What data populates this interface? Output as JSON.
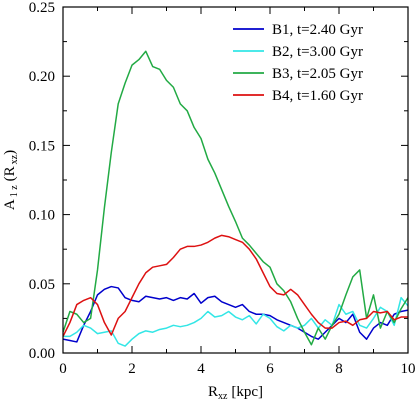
{
  "chart_data": {
    "type": "line",
    "xlabel_main": "R",
    "xlabel_sub": "xz",
    "xlabel_unit": "[kpc]",
    "ylabel_main": "A",
    "ylabel_sub": "1 z",
    "ylabel_arg_open": "(R",
    "ylabel_arg_sub": "xz",
    "ylabel_arg_close": ")",
    "xlim": [
      0,
      10
    ],
    "ylim": [
      0,
      0.25
    ],
    "xticks": [
      0,
      2,
      4,
      6,
      8,
      10
    ],
    "xtick_labels": [
      "0",
      "2",
      "4",
      "6",
      "8",
      "10"
    ],
    "yticks": [
      0,
      0.05,
      0.1,
      0.15,
      0.2,
      0.25
    ],
    "ytick_labels": [
      "0.00",
      "0.05",
      "0.10",
      "0.15",
      "0.20",
      "0.25"
    ],
    "grid": false,
    "legend_position": "top-right",
    "series": [
      {
        "name": "B1, t=2.40 Gyr",
        "color": "#0000cc",
        "x": [
          0.0,
          0.2,
          0.4,
          0.6,
          0.8,
          1.0,
          1.2,
          1.4,
          1.6,
          1.8,
          2.0,
          2.2,
          2.4,
          2.6,
          2.8,
          3.0,
          3.2,
          3.4,
          3.6,
          3.8,
          4.0,
          4.2,
          4.4,
          4.6,
          4.8,
          5.0,
          5.2,
          5.4,
          5.6,
          5.8,
          6.0,
          6.2,
          6.4,
          6.6,
          6.8,
          7.0,
          7.2,
          7.4,
          7.6,
          7.8,
          8.0,
          8.2,
          8.4,
          8.6,
          8.8,
          9.0,
          9.2,
          9.4,
          9.6,
          9.8,
          10.0
        ],
        "y": [
          0.01,
          0.009,
          0.008,
          0.02,
          0.03,
          0.042,
          0.046,
          0.048,
          0.047,
          0.04,
          0.038,
          0.037,
          0.041,
          0.04,
          0.039,
          0.04,
          0.038,
          0.04,
          0.039,
          0.043,
          0.036,
          0.04,
          0.041,
          0.037,
          0.035,
          0.033,
          0.035,
          0.03,
          0.028,
          0.028,
          0.027,
          0.024,
          0.022,
          0.02,
          0.018,
          0.015,
          0.012,
          0.01,
          0.015,
          0.02,
          0.025,
          0.022,
          0.028,
          0.015,
          0.01,
          0.018,
          0.022,
          0.02,
          0.028,
          0.03,
          0.031
        ]
      },
      {
        "name": "B2, t=3.00 Gyr",
        "color": "#33e6e6",
        "x": [
          0.0,
          0.2,
          0.4,
          0.6,
          0.8,
          1.0,
          1.2,
          1.4,
          1.6,
          1.8,
          2.0,
          2.2,
          2.4,
          2.6,
          2.8,
          3.0,
          3.2,
          3.4,
          3.6,
          3.8,
          4.0,
          4.2,
          4.4,
          4.6,
          4.8,
          5.0,
          5.2,
          5.4,
          5.6,
          5.8,
          6.0,
          6.2,
          6.4,
          6.6,
          6.8,
          7.0,
          7.2,
          7.4,
          7.6,
          7.8,
          8.0,
          8.2,
          8.4,
          8.6,
          8.8,
          9.0,
          9.2,
          9.4,
          9.6,
          9.8,
          10.0
        ],
        "y": [
          0.012,
          0.012,
          0.015,
          0.02,
          0.018,
          0.014,
          0.015,
          0.016,
          0.007,
          0.005,
          0.01,
          0.014,
          0.016,
          0.015,
          0.017,
          0.018,
          0.02,
          0.019,
          0.02,
          0.022,
          0.025,
          0.03,
          0.026,
          0.027,
          0.03,
          0.026,
          0.024,
          0.027,
          0.021,
          0.028,
          0.025,
          0.019,
          0.016,
          0.02,
          0.018,
          0.02,
          0.025,
          0.018,
          0.024,
          0.02,
          0.035,
          0.028,
          0.03,
          0.02,
          0.018,
          0.025,
          0.033,
          0.03,
          0.02,
          0.04,
          0.034
        ]
      },
      {
        "name": "B3, t=2.05 Gyr",
        "color": "#22aa44",
        "x": [
          0.0,
          0.2,
          0.4,
          0.6,
          0.8,
          1.0,
          1.2,
          1.4,
          1.6,
          1.8,
          2.0,
          2.2,
          2.4,
          2.6,
          2.8,
          3.0,
          3.2,
          3.4,
          3.6,
          3.8,
          4.0,
          4.2,
          4.4,
          4.6,
          4.8,
          5.0,
          5.2,
          5.4,
          5.6,
          5.8,
          6.0,
          6.2,
          6.4,
          6.6,
          6.8,
          7.0,
          7.2,
          7.4,
          7.6,
          7.8,
          8.0,
          8.2,
          8.4,
          8.6,
          8.8,
          9.0,
          9.2,
          9.4,
          9.6,
          9.8,
          10.0
        ],
        "y": [
          0.015,
          0.03,
          0.028,
          0.022,
          0.025,
          0.06,
          0.105,
          0.145,
          0.18,
          0.195,
          0.208,
          0.212,
          0.218,
          0.207,
          0.205,
          0.197,
          0.192,
          0.18,
          0.175,
          0.163,
          0.155,
          0.14,
          0.13,
          0.118,
          0.106,
          0.095,
          0.083,
          0.078,
          0.072,
          0.066,
          0.062,
          0.05,
          0.045,
          0.037,
          0.025,
          0.015,
          0.006,
          0.018,
          0.01,
          0.02,
          0.028,
          0.042,
          0.055,
          0.06,
          0.025,
          0.042,
          0.018,
          0.03,
          0.022,
          0.032,
          0.04
        ]
      },
      {
        "name": "B4, t=1.60 Gyr",
        "color": "#dd1111",
        "x": [
          0.0,
          0.2,
          0.4,
          0.6,
          0.8,
          1.0,
          1.2,
          1.4,
          1.6,
          1.8,
          2.0,
          2.2,
          2.4,
          2.6,
          2.8,
          3.0,
          3.2,
          3.4,
          3.6,
          3.8,
          4.0,
          4.2,
          4.4,
          4.6,
          4.8,
          5.0,
          5.2,
          5.4,
          5.6,
          5.8,
          6.0,
          6.2,
          6.4,
          6.6,
          6.8,
          7.0,
          7.2,
          7.4,
          7.6,
          7.8,
          8.0,
          8.2,
          8.4,
          8.6,
          8.8,
          9.0,
          9.2,
          9.4,
          9.6,
          9.8,
          10.0
        ],
        "y": [
          0.012,
          0.022,
          0.035,
          0.038,
          0.04,
          0.035,
          0.022,
          0.013,
          0.025,
          0.03,
          0.04,
          0.05,
          0.058,
          0.062,
          0.063,
          0.064,
          0.069,
          0.075,
          0.077,
          0.077,
          0.078,
          0.08,
          0.083,
          0.085,
          0.084,
          0.082,
          0.08,
          0.075,
          0.068,
          0.058,
          0.048,
          0.043,
          0.042,
          0.046,
          0.042,
          0.035,
          0.028,
          0.022,
          0.018,
          0.018,
          0.022,
          0.023,
          0.02,
          0.024,
          0.025,
          0.03,
          0.029,
          0.03,
          0.024,
          0.026,
          0.026
        ]
      }
    ]
  }
}
